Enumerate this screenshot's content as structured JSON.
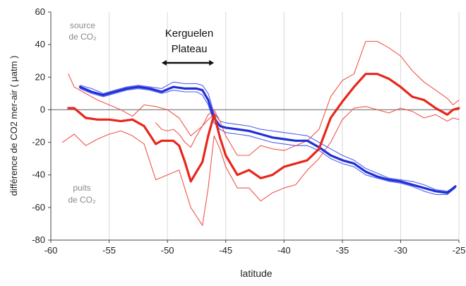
{
  "chart_data": {
    "type": "line",
    "title": "",
    "xlabel": "latitude",
    "ylabel": "différence de CO2 mer-air ( μatm )",
    "xlim": [
      -60,
      -25
    ],
    "ylim": [
      -80,
      60
    ],
    "xticks": [
      -60,
      -55,
      -50,
      -45,
      -40,
      -35,
      -30,
      -25
    ],
    "yticks": [
      -80,
      -60,
      -40,
      -20,
      0,
      20,
      40,
      60
    ],
    "vgrid": true,
    "zero_line": true,
    "annotations": {
      "source": [
        "source",
        "de CO₂"
      ],
      "sink": [
        "puits",
        "de CO₂"
      ],
      "plateau": [
        "Kerguelen",
        "Plateau"
      ]
    },
    "plateau_arrow": {
      "x_from": -50.5,
      "x_to": -46.0,
      "y": 20
    },
    "series": [
      {
        "color": "#1f2fd6",
        "width": 3.2,
        "x": [
          -57.5,
          -56.5,
          -55.5,
          -54.5,
          -53.5,
          -52.5,
          -51.5,
          -50.5,
          -49.5,
          -48.5,
          -47.5,
          -47,
          -46.5,
          -46,
          -45.5,
          -45,
          -44,
          -43,
          -42,
          -41,
          -40,
          -39,
          -38,
          -37,
          -36,
          -35,
          -34,
          -33,
          -32,
          -31,
          -30,
          -29,
          -28,
          -27,
          -26,
          -25.3
        ],
        "y": [
          14,
          11,
          9,
          11,
          13,
          14,
          13,
          11,
          14,
          13,
          13,
          12,
          6,
          -5,
          -10,
          -11,
          -12,
          -13,
          -15,
          -17,
          -18,
          -19,
          -19,
          -23,
          -28,
          -31,
          -33,
          -38,
          -41,
          -43,
          -44,
          -46,
          -48,
          -50,
          -51,
          -47
        ]
      },
      {
        "color": "#4d5ff0",
        "width": 1.1,
        "x": [
          -57.5,
          -56.5,
          -55.5,
          -54.5,
          -53.5,
          -52.5,
          -51.5,
          -50.5,
          -49.5,
          -48.5,
          -47.5,
          -47,
          -46.5,
          -46,
          -45.5,
          -45,
          -44,
          -43,
          -42,
          -41,
          -40,
          -39,
          -38,
          -37,
          -36,
          -35,
          -34,
          -33,
          -32,
          -31,
          -30,
          -29,
          -28,
          -27,
          -26,
          -25.3
        ],
        "y": [
          15,
          13,
          10,
          12,
          14,
          15,
          14,
          13,
          17,
          16,
          16,
          15,
          10,
          -2,
          -7,
          -8,
          -9,
          -10,
          -12,
          -13,
          -14,
          -15,
          -16,
          -20,
          -24,
          -28,
          -31,
          -36,
          -39,
          -42,
          -43,
          -44,
          -46,
          -49,
          -50,
          -47
        ]
      },
      {
        "color": "#4d5ff0",
        "width": 1.1,
        "x": [
          -57.5,
          -56.5,
          -55.5,
          -54.5,
          -53.5,
          -52.5,
          -51.5,
          -50.5,
          -49.5,
          -48.5,
          -47.5,
          -47,
          -46.5,
          -46,
          -45.5,
          -45,
          -44,
          -43,
          -42,
          -41,
          -40,
          -39,
          -38,
          -37,
          -36,
          -35,
          -34,
          -33,
          -32,
          -31,
          -30,
          -29,
          -28,
          -27,
          -26,
          -25.3
        ],
        "y": [
          13,
          10,
          8,
          10,
          12,
          13,
          12,
          10,
          12,
          11,
          11,
          9,
          3,
          -8,
          -12,
          -14,
          -15,
          -16,
          -18,
          -20,
          -21,
          -22,
          -22,
          -25,
          -30,
          -33,
          -35,
          -40,
          -42,
          -44,
          -45,
          -47,
          -50,
          -52,
          -52,
          -48
        ]
      },
      {
        "color": "#e8261b",
        "width": 3.2,
        "x": [
          -58.5,
          -58,
          -57,
          -56,
          -55,
          -54,
          -53,
          -52,
          -51,
          -50.5,
          -50,
          -49.5,
          -49,
          -48.5,
          -48,
          -47,
          -46.5,
          -46,
          -45.5,
          -45,
          -44,
          -43,
          -42,
          -41,
          -40,
          -39,
          -38,
          -37,
          -36,
          -35,
          -34,
          -33,
          -32,
          -31,
          -30,
          -29,
          -28,
          -27,
          -26,
          -25.5,
          -25
        ],
        "y": [
          1,
          1,
          -5,
          -6,
          -6,
          -7,
          -6,
          -10,
          -21,
          -19,
          -19,
          -19,
          -22,
          -32,
          -44,
          -32,
          -16,
          -3,
          -17,
          -28,
          -40,
          -37,
          -42,
          -40,
          -35,
          -33,
          -31,
          -24,
          -5,
          5,
          14,
          22,
          22,
          19,
          14,
          8,
          6,
          1,
          -3,
          0,
          1
        ]
      },
      {
        "color": "#f0554a",
        "width": 1.1,
        "x": [
          -58.5,
          -58,
          -57,
          -56,
          -55,
          -54,
          -53,
          -52,
          -51,
          -50,
          -49,
          -48,
          -47,
          -46.5,
          -46,
          -45.5,
          -45,
          -44,
          -43,
          -42,
          -41,
          -40,
          -39,
          -38,
          -37,
          -36,
          -35,
          -34,
          -33,
          -32,
          -31,
          -30,
          -29,
          -28,
          -27,
          -26,
          -25.5,
          -25
        ],
        "y": [
          22,
          14,
          10,
          6,
          3,
          0,
          -4,
          3,
          2,
          0,
          -5,
          -16,
          -10,
          -3,
          0,
          -7,
          -16,
          -28,
          -28,
          -22,
          -24,
          -25,
          -22,
          -19,
          -12,
          8,
          18,
          22,
          42,
          42,
          38,
          33,
          24,
          17,
          12,
          7,
          3,
          6
        ]
      },
      {
        "color": "#f0554a",
        "width": 1.1,
        "x": [
          -59,
          -58,
          -57,
          -56,
          -55,
          -54,
          -53,
          -52,
          -51,
          -50,
          -49,
          -48,
          -47,
          -46.5,
          -46,
          -45.5,
          -45,
          -44,
          -43,
          -42,
          -41,
          -40,
          -39,
          -38,
          -37,
          -36,
          -35,
          -34,
          -33,
          -32,
          -31,
          -30,
          -29,
          -28,
          -27,
          -26,
          -25.5,
          -25
        ],
        "y": [
          -20,
          -15,
          -22,
          -18,
          -15,
          -13,
          -16,
          -21,
          -43,
          -40,
          -37,
          -60,
          -71,
          -48,
          -16,
          -24,
          -35,
          -48,
          -48,
          -56,
          -51,
          -48,
          -46,
          -37,
          -30,
          -20,
          -6,
          1,
          2,
          0,
          -2,
          1,
          -1,
          -5,
          -3,
          -7,
          -5,
          -6
        ]
      },
      {
        "color": "#f0554a",
        "width": 1.1,
        "x": [
          -51,
          -50.5,
          -50,
          -49.5,
          -49,
          -48.5,
          -48,
          -47.5,
          -47,
          -46.5,
          -46
        ],
        "y": [
          -8,
          -12,
          -13,
          -12,
          -15,
          -20,
          -23,
          -16,
          -10,
          -6,
          -3
        ]
      }
    ]
  }
}
